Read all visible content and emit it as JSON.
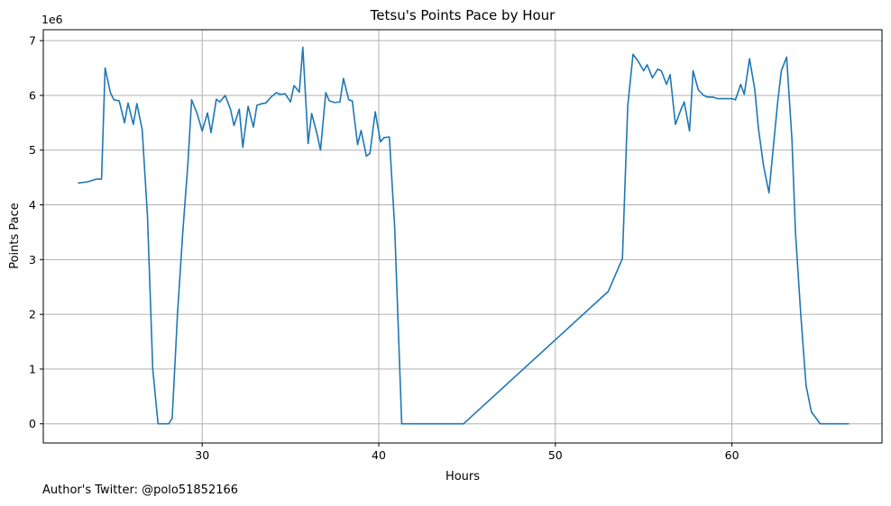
{
  "chart_data": {
    "type": "line",
    "title": "Tetsu's Points Pace by Hour",
    "xlabel": "Hours",
    "ylabel": "Points Pace",
    "y_offset_text": "1e6",
    "y_multiplier": 1000000,
    "xlim": [
      21,
      68.5
    ],
    "ylim": [
      -0.35,
      7.2
    ],
    "x_ticks": [
      30,
      40,
      50,
      60
    ],
    "y_ticks": [
      0,
      1,
      2,
      3,
      4,
      5,
      6,
      7
    ],
    "grid": true,
    "series": [
      {
        "color": "#1f77b4",
        "x": [
          23.0,
          23.5,
          24.0,
          24.3,
          24.5,
          24.8,
          25.0,
          25.3,
          25.6,
          25.8,
          26.1,
          26.3,
          26.6,
          26.9,
          27.2,
          27.5,
          27.8,
          28.1,
          28.3,
          28.6,
          28.9,
          29.2,
          29.4,
          29.7,
          30.0,
          30.3,
          30.5,
          30.8,
          31.0,
          31.3,
          31.6,
          31.8,
          32.1,
          32.3,
          32.6,
          32.9,
          33.1,
          33.4,
          33.6,
          33.9,
          34.2,
          34.4,
          34.7,
          35.0,
          35.2,
          35.5,
          35.7,
          36.0,
          36.2,
          36.5,
          36.7,
          37.0,
          37.2,
          37.5,
          37.8,
          38.0,
          38.3,
          38.5,
          38.8,
          39.0,
          39.3,
          39.5,
          39.8,
          40.1,
          40.3,
          40.6,
          40.9,
          41.3,
          42.0,
          43.0,
          44.0,
          44.8,
          53.0,
          53.8,
          54.1,
          54.4,
          54.7,
          55.0,
          55.2,
          55.5,
          55.8,
          56.0,
          56.3,
          56.5,
          56.8,
          57.1,
          57.3,
          57.6,
          57.8,
          58.1,
          58.4,
          58.6,
          58.9,
          59.2,
          59.4,
          59.7,
          60.0,
          60.2,
          60.5,
          60.7,
          61.0,
          61.3,
          61.5,
          61.8,
          62.1,
          62.3,
          62.6,
          62.8,
          63.1,
          63.4,
          63.6,
          63.9,
          64.2,
          64.5,
          65.0,
          65.5,
          66.0,
          66.6
        ],
        "y": [
          4.4,
          4.42,
          4.47,
          4.47,
          6.5,
          6.05,
          5.92,
          5.9,
          5.5,
          5.86,
          5.47,
          5.85,
          5.38,
          3.8,
          1.0,
          0.0,
          0.0,
          0.0,
          0.1,
          2.0,
          3.5,
          4.8,
          5.92,
          5.68,
          5.35,
          5.68,
          5.32,
          5.93,
          5.88,
          6.0,
          5.75,
          5.45,
          5.75,
          5.05,
          5.8,
          5.42,
          5.82,
          5.85,
          5.86,
          5.97,
          6.05,
          6.02,
          6.03,
          5.88,
          6.18,
          6.06,
          6.88,
          5.12,
          5.67,
          5.3,
          5.0,
          6.05,
          5.9,
          5.87,
          5.88,
          6.31,
          5.92,
          5.9,
          5.1,
          5.36,
          4.89,
          4.94,
          5.7,
          5.15,
          5.23,
          5.24,
          3.6,
          0.0,
          0.0,
          0.0,
          0.0,
          0.0,
          2.42,
          3.02,
          5.8,
          6.75,
          6.62,
          6.45,
          6.56,
          6.32,
          6.48,
          6.45,
          6.2,
          6.38,
          5.47,
          5.73,
          5.88,
          5.35,
          6.45,
          6.1,
          6.0,
          5.97,
          5.97,
          5.94,
          5.94,
          5.94,
          5.94,
          5.92,
          6.2,
          6.02,
          6.67,
          6.1,
          5.4,
          4.7,
          4.22,
          4.9,
          5.9,
          6.45,
          6.7,
          5.2,
          3.5,
          2.0,
          0.7,
          0.22,
          0.0,
          0.0,
          0.0,
          0.0
        ]
      }
    ]
  },
  "footer": {
    "author_text": "Author's Twitter: @polo51852166"
  }
}
